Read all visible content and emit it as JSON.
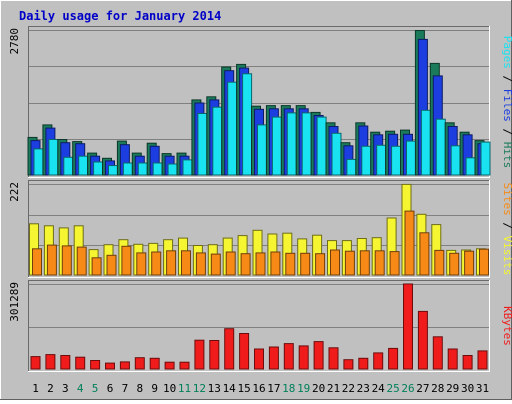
{
  "chart_data": {
    "type": "bar",
    "title": "Daily usage for January 2014",
    "categories": [
      "1",
      "2",
      "3",
      "4",
      "5",
      "6",
      "7",
      "8",
      "9",
      "10",
      "11",
      "12",
      "13",
      "14",
      "15",
      "16",
      "17",
      "18",
      "19",
      "20",
      "21",
      "22",
      "23",
      "24",
      "25",
      "26",
      "27",
      "28",
      "29",
      "30",
      "31"
    ],
    "weekend_days": [
      "4",
      "5",
      "11",
      "12",
      "18",
      "19",
      "25",
      "26"
    ],
    "panels": [
      {
        "id": "hits_files_pages",
        "ymax_label": "2780",
        "ylim": [
          0,
          2780
        ],
        "legend": [
          "Pages",
          "Files",
          "Hits"
        ],
        "series": [
          {
            "name": "Hits",
            "color": "#1a7a5a",
            "values": [
              720,
              960,
              680,
              640,
              420,
              320,
              650,
              420,
              610,
              410,
              420,
              1440,
              1500,
              2070,
              2120,
              1320,
              1330,
              1330,
              1330,
              1200,
              1000,
              620,
              1000,
              820,
              840,
              860,
              2770,
              2140,
              1000,
              820,
              660
            ]
          },
          {
            "name": "Files",
            "color": "#1c3ee0",
            "values": [
              660,
              900,
              620,
              600,
              360,
              270,
              580,
              360,
              550,
              360,
              360,
              1380,
              1440,
              2000,
              2050,
              1260,
              1270,
              1270,
              1270,
              1140,
              930,
              560,
              940,
              770,
              780,
              780,
              2600,
              1900,
              930,
              770,
              600
            ]
          },
          {
            "name": "Pages",
            "color": "#19e3f0",
            "values": [
              500,
              680,
              340,
              360,
              250,
              180,
              230,
              230,
              230,
              210,
              290,
              1180,
              1300,
              1780,
              1940,
              960,
              1110,
              1190,
              1190,
              1110,
              800,
              300,
              550,
              570,
              550,
              650,
              1240,
              1070,
              560,
              330,
              630
            ]
          }
        ]
      },
      {
        "id": "visits_sites",
        "ymax_label": "222",
        "ylim": [
          0,
          222
        ],
        "legend": [
          "Sites",
          "Visits"
        ],
        "series": [
          {
            "name": "Visits",
            "color": "#f5f531",
            "values": [
              125,
              120,
              115,
              120,
              62,
              74,
              86,
              75,
              77,
              86,
              90,
              72,
              74,
              90,
              96,
              109,
              100,
              102,
              88,
              97,
              84,
              84,
              89,
              91,
              139,
              221,
              148,
              123,
              60,
              61,
              64
            ]
          },
          {
            "name": "Sites",
            "color": "#f78a16",
            "values": [
              64,
              73,
              71,
              68,
              42,
              48,
              70,
              54,
              56,
              59,
              59,
              54,
              51,
              56,
              52,
              54,
              56,
              53,
              53,
              52,
              61,
              58,
              59,
              59,
              57,
              156,
              103,
              60,
              53,
              58,
              63
            ]
          }
        ]
      },
      {
        "id": "kbytes",
        "ymax_label": "301289",
        "ylim": [
          0,
          301289
        ],
        "legend": [
          "KBytes"
        ],
        "series": [
          {
            "name": "KBytes",
            "color": "#f01c1c",
            "values": [
              44000,
              51000,
              48000,
              42000,
              30000,
              21000,
              25000,
              40000,
              38000,
              24000,
              24000,
              102000,
              101000,
              143000,
              126000,
              71000,
              78000,
              90000,
              82000,
              97000,
              75000,
              33000,
              38000,
              57000,
              73000,
              301289,
              204000,
              114000,
              71000,
              48000,
              64000
            ]
          }
        ]
      }
    ]
  },
  "colors": {
    "background": "#c0c0c0",
    "border_light": "#ffffff",
    "border_dark": "#7a7a7a",
    "gridline": "#808080",
    "title": "#0000c8",
    "weekday_label": "#000000",
    "weekend_label": "#00805a"
  }
}
